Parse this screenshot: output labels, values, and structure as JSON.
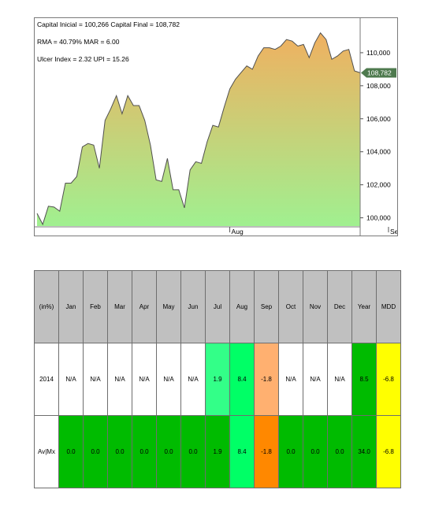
{
  "stats": {
    "line1": "Capital Inicial = 100,266  Capital Final = 108,782",
    "line2": "RMA = 40.79%   MAR = 6.00",
    "line3": "Ulcer Index = 2.32   UPI = 15.26"
  },
  "chart_data": {
    "type": "area",
    "title": "",
    "xlabel": "",
    "ylabel": "",
    "ylim": [
      99500,
      112000
    ],
    "yticks": [
      "100,000",
      "102,000",
      "104,000",
      "106,000",
      "108,000",
      "110,000"
    ],
    "ytick_values": [
      100000,
      102000,
      104000,
      106000,
      108000,
      110000
    ],
    "xticks": [
      "Aug",
      "Sep"
    ],
    "xtick_index": [
      34,
      62
    ],
    "last_value_label": "108,782",
    "last_value": 108782,
    "grid": false,
    "fill_gradient": [
      "#a0f090",
      "#f0b060"
    ],
    "line_color": "#505050",
    "values": [
      100266,
      99600,
      100700,
      100650,
      100400,
      102100,
      102100,
      102500,
      104300,
      104500,
      104400,
      103000,
      105900,
      106600,
      107400,
      106300,
      107400,
      106800,
      106800,
      105900,
      104400,
      102300,
      102200,
      103600,
      101700,
      101700,
      100600,
      102900,
      103400,
      103300,
      104600,
      105600,
      105500,
      106700,
      107800,
      108400,
      108800,
      109200,
      109000,
      109800,
      110300,
      110300,
      110200,
      110400,
      110800,
      110700,
      110400,
      110500,
      109700,
      110600,
      111200,
      110800,
      109600,
      109800,
      110100,
      110200,
      108900,
      108782
    ]
  },
  "table": {
    "headers": [
      "(in%)",
      "Jan",
      "Feb",
      "Mar",
      "Apr",
      "May",
      "Jun",
      "Jul",
      "Aug",
      "Sep",
      "Oct",
      "Nov",
      "Dec",
      "Year",
      "MDD"
    ],
    "rows": [
      {
        "cells": [
          "2014",
          "N/A",
          "N/A",
          "N/A",
          "N/A",
          "N/A",
          "N/A",
          "1.9",
          "8.4",
          "-1.8",
          "N/A",
          "N/A",
          "N/A",
          "8.5",
          "-6.8"
        ],
        "colors": [
          "#ffffff",
          "#ffffff",
          "#ffffff",
          "#ffffff",
          "#ffffff",
          "#ffffff",
          "#ffffff",
          "#33ff88",
          "#00ff66",
          "#ffb070",
          "#ffffff",
          "#ffffff",
          "#ffffff",
          "#00bb00",
          "#ffff00"
        ]
      },
      {
        "cells": [
          "Av|Mx",
          "0.0",
          "0.0",
          "0.0",
          "0.0",
          "0.0",
          "0.0",
          "1.9",
          "8.4",
          "-1.8",
          "0.0",
          "0.0",
          "0.0",
          "34.0",
          "-6.8"
        ],
        "colors": [
          "#ffffff",
          "#00bb00",
          "#00bb00",
          "#00bb00",
          "#00bb00",
          "#00bb00",
          "#00bb00",
          "#00bb00",
          "#00ff66",
          "#ff8800",
          "#00bb00",
          "#00bb00",
          "#00bb00",
          "#00bb00",
          "#ffff00"
        ]
      }
    ]
  }
}
